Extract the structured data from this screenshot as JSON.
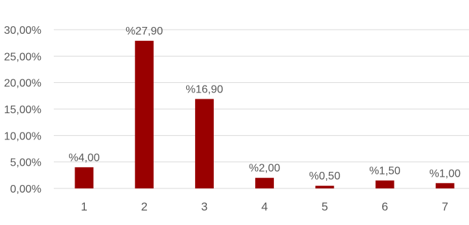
{
  "chart_data": {
    "type": "bar",
    "categories": [
      "1",
      "2",
      "3",
      "4",
      "5",
      "6",
      "7"
    ],
    "values": [
      4.0,
      27.9,
      16.9,
      2.0,
      0.5,
      1.5,
      1.0
    ],
    "data_labels": [
      "%4,00",
      "%27,90",
      "%16,90",
      "%2,00",
      "%0,50",
      "%1,50",
      "%1,00"
    ],
    "y_ticks": [
      0,
      5,
      10,
      15,
      20,
      25,
      30
    ],
    "y_tick_labels": [
      "0,00%",
      "5,00%",
      "10,00%",
      "15,00%",
      "20,00%",
      "25,00%",
      "30,00%"
    ],
    "ylim": [
      0,
      30
    ],
    "grid": true,
    "legend": "none",
    "title": "",
    "xlabel": "",
    "ylabel": "",
    "colors": {
      "bar": "#990000",
      "grid": "#d9d9d9",
      "text": "#595959"
    }
  }
}
